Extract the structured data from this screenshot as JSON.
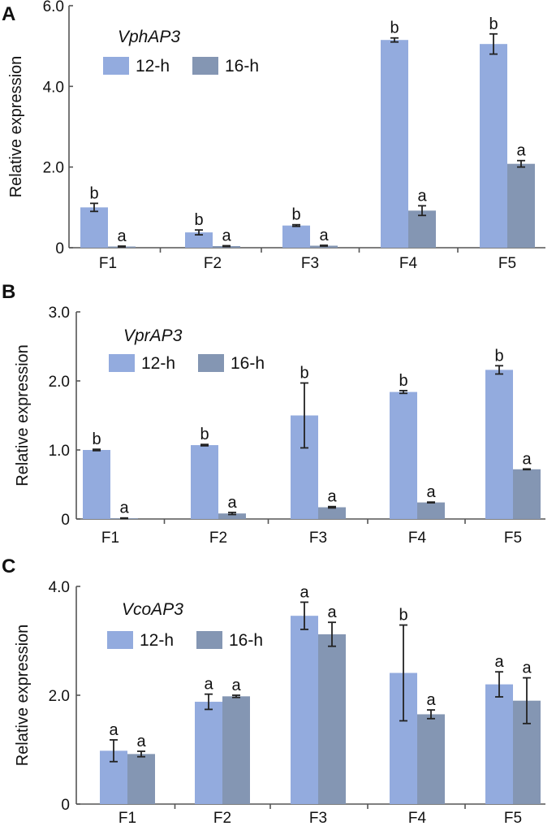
{
  "colors": {
    "s12": "#93ABDE",
    "s16": "#8496B3"
  },
  "chart_data": [
    {
      "type": "bar",
      "panel": "A",
      "title": "VphAP3",
      "ylabel": "Relative expression",
      "ylim": [
        0,
        6.0
      ],
      "yticks": [
        0,
        2.0,
        4.0,
        6.0
      ],
      "ytick_labels": [
        "0",
        "2.0",
        "4.0",
        "6.0"
      ],
      "categories": [
        "F1",
        "F2",
        "F3",
        "F4",
        "F5"
      ],
      "series": [
        {
          "name": "12-h",
          "values": [
            1.0,
            0.38,
            0.55,
            5.15,
            5.05
          ],
          "errors": [
            0.1,
            0.06,
            0.02,
            0.05,
            0.25
          ],
          "letters": [
            "b",
            "b",
            "b",
            "b",
            "b"
          ]
        },
        {
          "name": "16-h",
          "values": [
            0.03,
            0.04,
            0.05,
            0.92,
            2.08
          ],
          "errors": [
            0.01,
            0.01,
            0.01,
            0.12,
            0.08
          ],
          "letters": [
            "a",
            "a",
            "a",
            "a",
            "a"
          ]
        }
      ]
    },
    {
      "type": "bar",
      "panel": "B",
      "title": "VprAP3",
      "ylabel": "Relative expression",
      "ylim": [
        0,
        3.0
      ],
      "yticks": [
        0,
        1.0,
        2.0,
        3.0
      ],
      "ytick_labels": [
        "0",
        "1.0",
        "2.0",
        "3.0"
      ],
      "categories": [
        "F1",
        "F2",
        "F3",
        "F4",
        "F5"
      ],
      "series": [
        {
          "name": "12-h",
          "values": [
            1.0,
            1.07,
            1.5,
            1.84,
            2.16
          ],
          "errors": [
            0.01,
            0.01,
            0.47,
            0.02,
            0.06
          ],
          "letters": [
            "b",
            "b",
            "b",
            "b",
            "b"
          ]
        },
        {
          "name": "16-h",
          "values": [
            0.01,
            0.08,
            0.17,
            0.24,
            0.72
          ],
          "errors": [
            0.005,
            0.015,
            0.01,
            0.005,
            0.005
          ],
          "letters": [
            "a",
            "a",
            "a",
            "a",
            "a"
          ]
        }
      ]
    },
    {
      "type": "bar",
      "panel": "C",
      "title": "VcoAP3",
      "ylabel": "Relative expression",
      "ylim": [
        0,
        4.0
      ],
      "yticks": [
        0,
        2.0,
        4.0
      ],
      "ytick_labels": [
        "0",
        "2.0",
        "4.0"
      ],
      "categories": [
        "F1",
        "F2",
        "F3",
        "F4",
        "F5"
      ],
      "series": [
        {
          "name": "12-h",
          "values": [
            0.98,
            1.88,
            3.46,
            2.41,
            2.2
          ],
          "errors": [
            0.2,
            0.14,
            0.25,
            0.88,
            0.23
          ],
          "letters": [
            "a",
            "a",
            "a",
            "b",
            "a"
          ]
        },
        {
          "name": "16-h",
          "values": [
            0.92,
            1.98,
            3.12,
            1.65,
            1.9
          ],
          "errors": [
            0.05,
            0.02,
            0.22,
            0.08,
            0.42
          ],
          "letters": [
            "a",
            "a",
            "a",
            "a",
            "a"
          ]
        }
      ]
    }
  ]
}
